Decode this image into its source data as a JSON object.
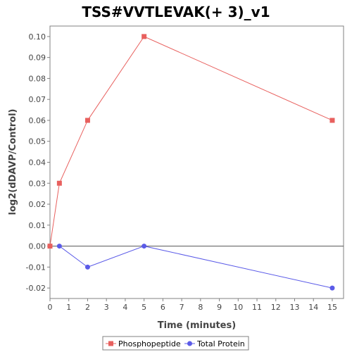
{
  "chart_data": {
    "type": "line",
    "title": "TSS#VVTLEVAK(+ 3)_v1",
    "xlabel": "Time (minutes)",
    "ylabel": "log2(dDAVP/Control)",
    "xlim": [
      0,
      15.6
    ],
    "ylim": [
      -0.025,
      0.105
    ],
    "x_ticks": [
      0,
      1,
      2,
      3,
      4,
      5,
      6,
      7,
      8,
      9,
      10,
      11,
      12,
      13,
      14,
      15
    ],
    "y_ticks": [
      0.1,
      0.09,
      0.08,
      0.07,
      0.06,
      0.05,
      0.04,
      0.03,
      0.02,
      0.01,
      0.0,
      -0.01,
      -0.02
    ],
    "y_tick_labels": [
      "0.10",
      "0.09",
      "0.08",
      "0.07",
      "0.06",
      "0.05",
      "0.04",
      "0.03",
      "0.02",
      "0.01",
      "0.00",
      "-0.01",
      "-0.02"
    ],
    "grid": false,
    "zero_line": true,
    "legend_position": "bottom",
    "series": [
      {
        "name": "Phosphopeptide",
        "color": "#e8605e",
        "marker": "square",
        "x": [
          0,
          0.5,
          2,
          5,
          15
        ],
        "y": [
          0.0,
          0.03,
          0.06,
          0.1,
          0.06
        ]
      },
      {
        "name": "Total Protein",
        "color": "#5b5be8",
        "marker": "circle",
        "x": [
          0.5,
          2,
          5,
          15
        ],
        "y": [
          0.0,
          -0.01,
          0.0,
          -0.02
        ]
      }
    ]
  }
}
